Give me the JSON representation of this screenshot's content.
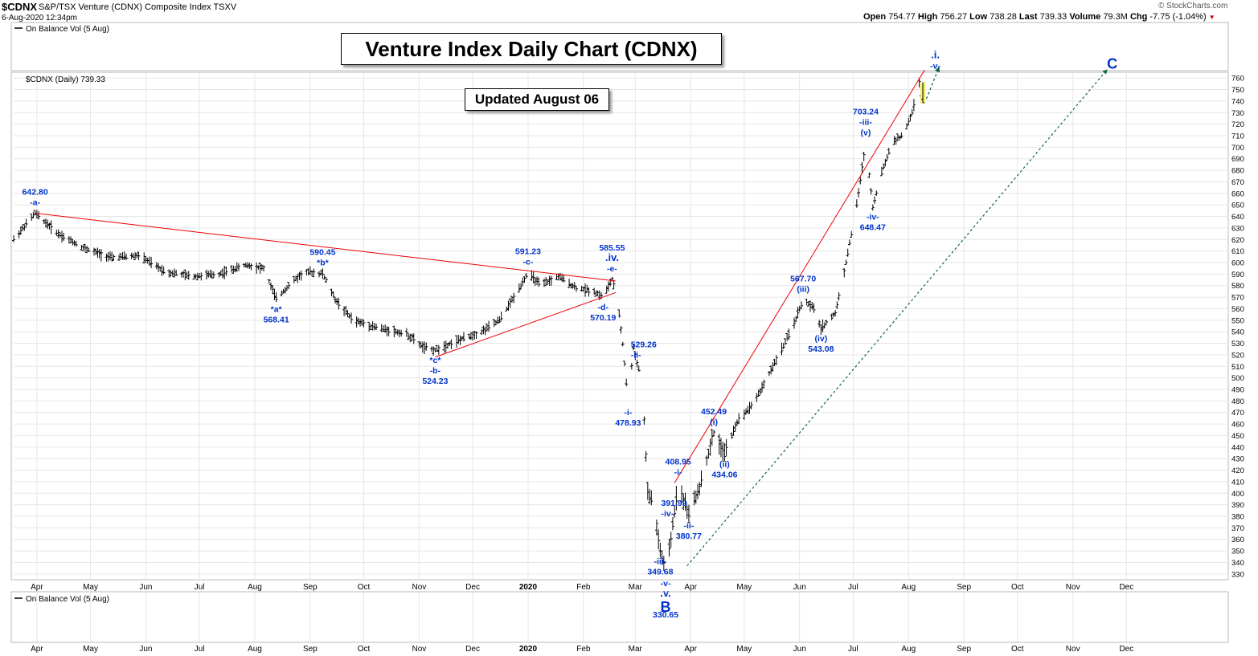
{
  "header": {
    "symbol": "$CDNX",
    "description": "S&P/TSX Venture (CDNX) Composite Index  TSXV",
    "timestamp": "6-Aug-2020 12:34pm",
    "watermark": "© StockCharts.com",
    "ohlc": {
      "open_label": "Open",
      "open": "754.77",
      "high_label": "High",
      "high": "756.27",
      "low_label": "Low",
      "low": "738.28",
      "last_label": "Last",
      "last": "739.33",
      "volume_label": "Volume",
      "volume": "79.3M",
      "chg_label": "Chg",
      "chg": "-7.75 (-1.04%)"
    }
  },
  "annotations": {
    "title": "Venture Index Daily Chart (CDNX)",
    "updated": "Updated August 06"
  },
  "panels": {
    "obv_top": "On Balance Vol (5 Aug)",
    "price_legend": "$CDNX (Daily) 739.33",
    "obv_bottom": "On Balance Vol (5 Aug)"
  },
  "colors": {
    "price_bars": "#000000",
    "wave_labels": "#0033cc",
    "trendline": "#ee0000",
    "projection": "#116644",
    "last_bar_highlight": "#f6f06a",
    "grid": "#e6e6e6"
  },
  "chart_data": {
    "type": "ohlc",
    "ylim": [
      325,
      765
    ],
    "y_ticks": [
      330,
      340,
      350,
      360,
      370,
      380,
      390,
      400,
      410,
      420,
      430,
      440,
      450,
      460,
      470,
      480,
      490,
      500,
      510,
      520,
      530,
      540,
      550,
      560,
      570,
      580,
      590,
      600,
      610,
      620,
      630,
      640,
      650,
      660,
      670,
      680,
      690,
      700,
      710,
      720,
      730,
      740,
      750,
      760
    ],
    "x_ticks": [
      "Apr",
      "May",
      "Jun",
      "Jul",
      "Aug",
      "Sep",
      "Oct",
      "Nov",
      "Dec",
      "2020",
      "Feb",
      "Mar",
      "Apr",
      "May",
      "Jun",
      "Jul",
      "Aug",
      "Sep",
      "Oct",
      "Nov",
      "Dec"
    ],
    "x_tick_days": [
      13,
      43,
      74,
      104,
      135,
      166,
      196,
      227,
      257,
      288,
      319,
      348,
      379,
      409,
      440,
      470,
      501,
      532,
      562,
      593,
      623
    ],
    "price_path": [
      [
        0,
        620
      ],
      [
        12,
        642.8
      ],
      [
        25,
        625
      ],
      [
        40,
        612
      ],
      [
        55,
        604
      ],
      [
        70,
        606
      ],
      [
        85,
        592
      ],
      [
        100,
        588
      ],
      [
        115,
        590
      ],
      [
        130,
        598
      ],
      [
        140,
        595
      ],
      [
        147,
        568.41
      ],
      [
        155,
        582
      ],
      [
        163,
        592
      ],
      [
        173,
        590.45
      ],
      [
        180,
        568
      ],
      [
        190,
        550
      ],
      [
        205,
        543
      ],
      [
        220,
        538
      ],
      [
        230,
        526
      ],
      [
        236,
        524.23
      ],
      [
        248,
        532
      ],
      [
        262,
        540
      ],
      [
        272,
        550
      ],
      [
        280,
        570
      ],
      [
        288,
        591.23
      ],
      [
        295,
        580
      ],
      [
        305,
        588
      ],
      [
        315,
        578
      ],
      [
        325,
        575
      ],
      [
        330,
        570.19
      ],
      [
        335,
        585.55
      ],
      [
        338,
        568
      ],
      [
        341,
        529.26
      ],
      [
        344,
        478.93
      ],
      [
        347,
        526
      ],
      [
        352,
        495
      ],
      [
        355,
        400
      ],
      [
        358,
        391.99
      ],
      [
        362,
        349.68
      ],
      [
        365,
        330.65
      ],
      [
        368,
        360
      ],
      [
        372,
        408.95
      ],
      [
        378,
        380.77
      ],
      [
        385,
        410
      ],
      [
        392,
        452.49
      ],
      [
        398,
        434.06
      ],
      [
        405,
        462
      ],
      [
        415,
        480
      ],
      [
        425,
        510
      ],
      [
        435,
        540
      ],
      [
        442,
        567.7
      ],
      [
        448,
        560
      ],
      [
        452,
        543.08
      ],
      [
        460,
        556
      ],
      [
        466,
        600
      ],
      [
        472,
        650
      ],
      [
        477,
        703.24
      ],
      [
        481,
        648.47
      ],
      [
        486,
        678
      ],
      [
        492,
        705
      ],
      [
        498,
        710
      ],
      [
        503,
        730
      ],
      [
        507,
        756.27
      ],
      [
        509,
        739.33
      ]
    ],
    "last_bar": {
      "high": 756.27,
      "low": 738.28
    },
    "trendlines": [
      {
        "from": [
          12,
          642.8
        ],
        "to": [
          337,
          584
        ]
      },
      {
        "from": [
          236,
          518
        ],
        "to": [
          337,
          574
        ]
      },
      {
        "from": [
          370,
          408.95
        ],
        "to": [
          510,
          767
        ]
      }
    ],
    "wave_labels": [
      {
        "day": 12,
        "price": 642.8,
        "lines": [
          "642.80",
          "-a-"
        ],
        "pos": "above"
      },
      {
        "day": 147,
        "price": 568.41,
        "lines": [
          "*a*",
          "568.41"
        ],
        "pos": "below"
      },
      {
        "day": 173,
        "price": 590.45,
        "lines": [
          "590.45",
          "*b*"
        ],
        "pos": "above"
      },
      {
        "day": 236,
        "price": 524.23,
        "lines": [
          "*c*",
          "-b-",
          "524.23"
        ],
        "pos": "below"
      },
      {
        "day": 288,
        "price": 591.23,
        "lines": [
          "591.23",
          "-c-"
        ],
        "pos": "above"
      },
      {
        "day": 330,
        "price": 570.19,
        "lines": [
          "-d-",
          "570.19"
        ],
        "pos": "below"
      },
      {
        "day": 335,
        "price": 585.55,
        "lines": [
          "585.55",
          ".iv.",
          "-e-"
        ],
        "pos": "above"
      },
      {
        "day": 341,
        "price": 529.26,
        "lines": [
          "529.26",
          "-ii-"
        ],
        "pos": "right"
      },
      {
        "day": 344,
        "price": 478.93,
        "lines": [
          "-i-",
          "478.93"
        ],
        "pos": "below"
      },
      {
        "day": 358,
        "price": 391.99,
        "lines": [
          "391.99",
          "-iv-"
        ],
        "pos": "right"
      },
      {
        "day": 362,
        "price": 349.68,
        "lines": [
          "-iii-",
          "349.68"
        ],
        "pos": "below"
      },
      {
        "day": 365,
        "price": 330.65,
        "lines": [
          "-v-",
          ".v.",
          "B",
          "330.65"
        ],
        "pos": "below"
      },
      {
        "day": 372,
        "price": 408.95,
        "lines": [
          "408.95",
          "-i-"
        ],
        "pos": "above"
      },
      {
        "day": 378,
        "price": 380.77,
        "lines": [
          "-ii-",
          "380.77"
        ],
        "pos": "below"
      },
      {
        "day": 392,
        "price": 452.49,
        "lines": [
          "452.49",
          "(i)"
        ],
        "pos": "above"
      },
      {
        "day": 398,
        "price": 434.06,
        "lines": [
          "(ii)",
          "434.06"
        ],
        "pos": "below"
      },
      {
        "day": 442,
        "price": 567.7,
        "lines": [
          "567.70",
          "(iii)"
        ],
        "pos": "above"
      },
      {
        "day": 452,
        "price": 543.08,
        "lines": [
          "(iv)",
          "543.08"
        ],
        "pos": "below"
      },
      {
        "day": 477,
        "price": 703.24,
        "lines": [
          "703.24",
          "-iii-",
          "(v)"
        ],
        "pos": "above"
      },
      {
        "day": 481,
        "price": 648.47,
        "lines": [
          "-iv-",
          "648.47"
        ],
        "pos": "below"
      },
      {
        "day": 516,
        "price": 780,
        "lines": [
          ".i.",
          "-v-"
        ],
        "pos": "abs"
      },
      {
        "day": 615,
        "price": 775,
        "lines": [
          "C"
        ],
        "pos": "abs"
      }
    ]
  }
}
